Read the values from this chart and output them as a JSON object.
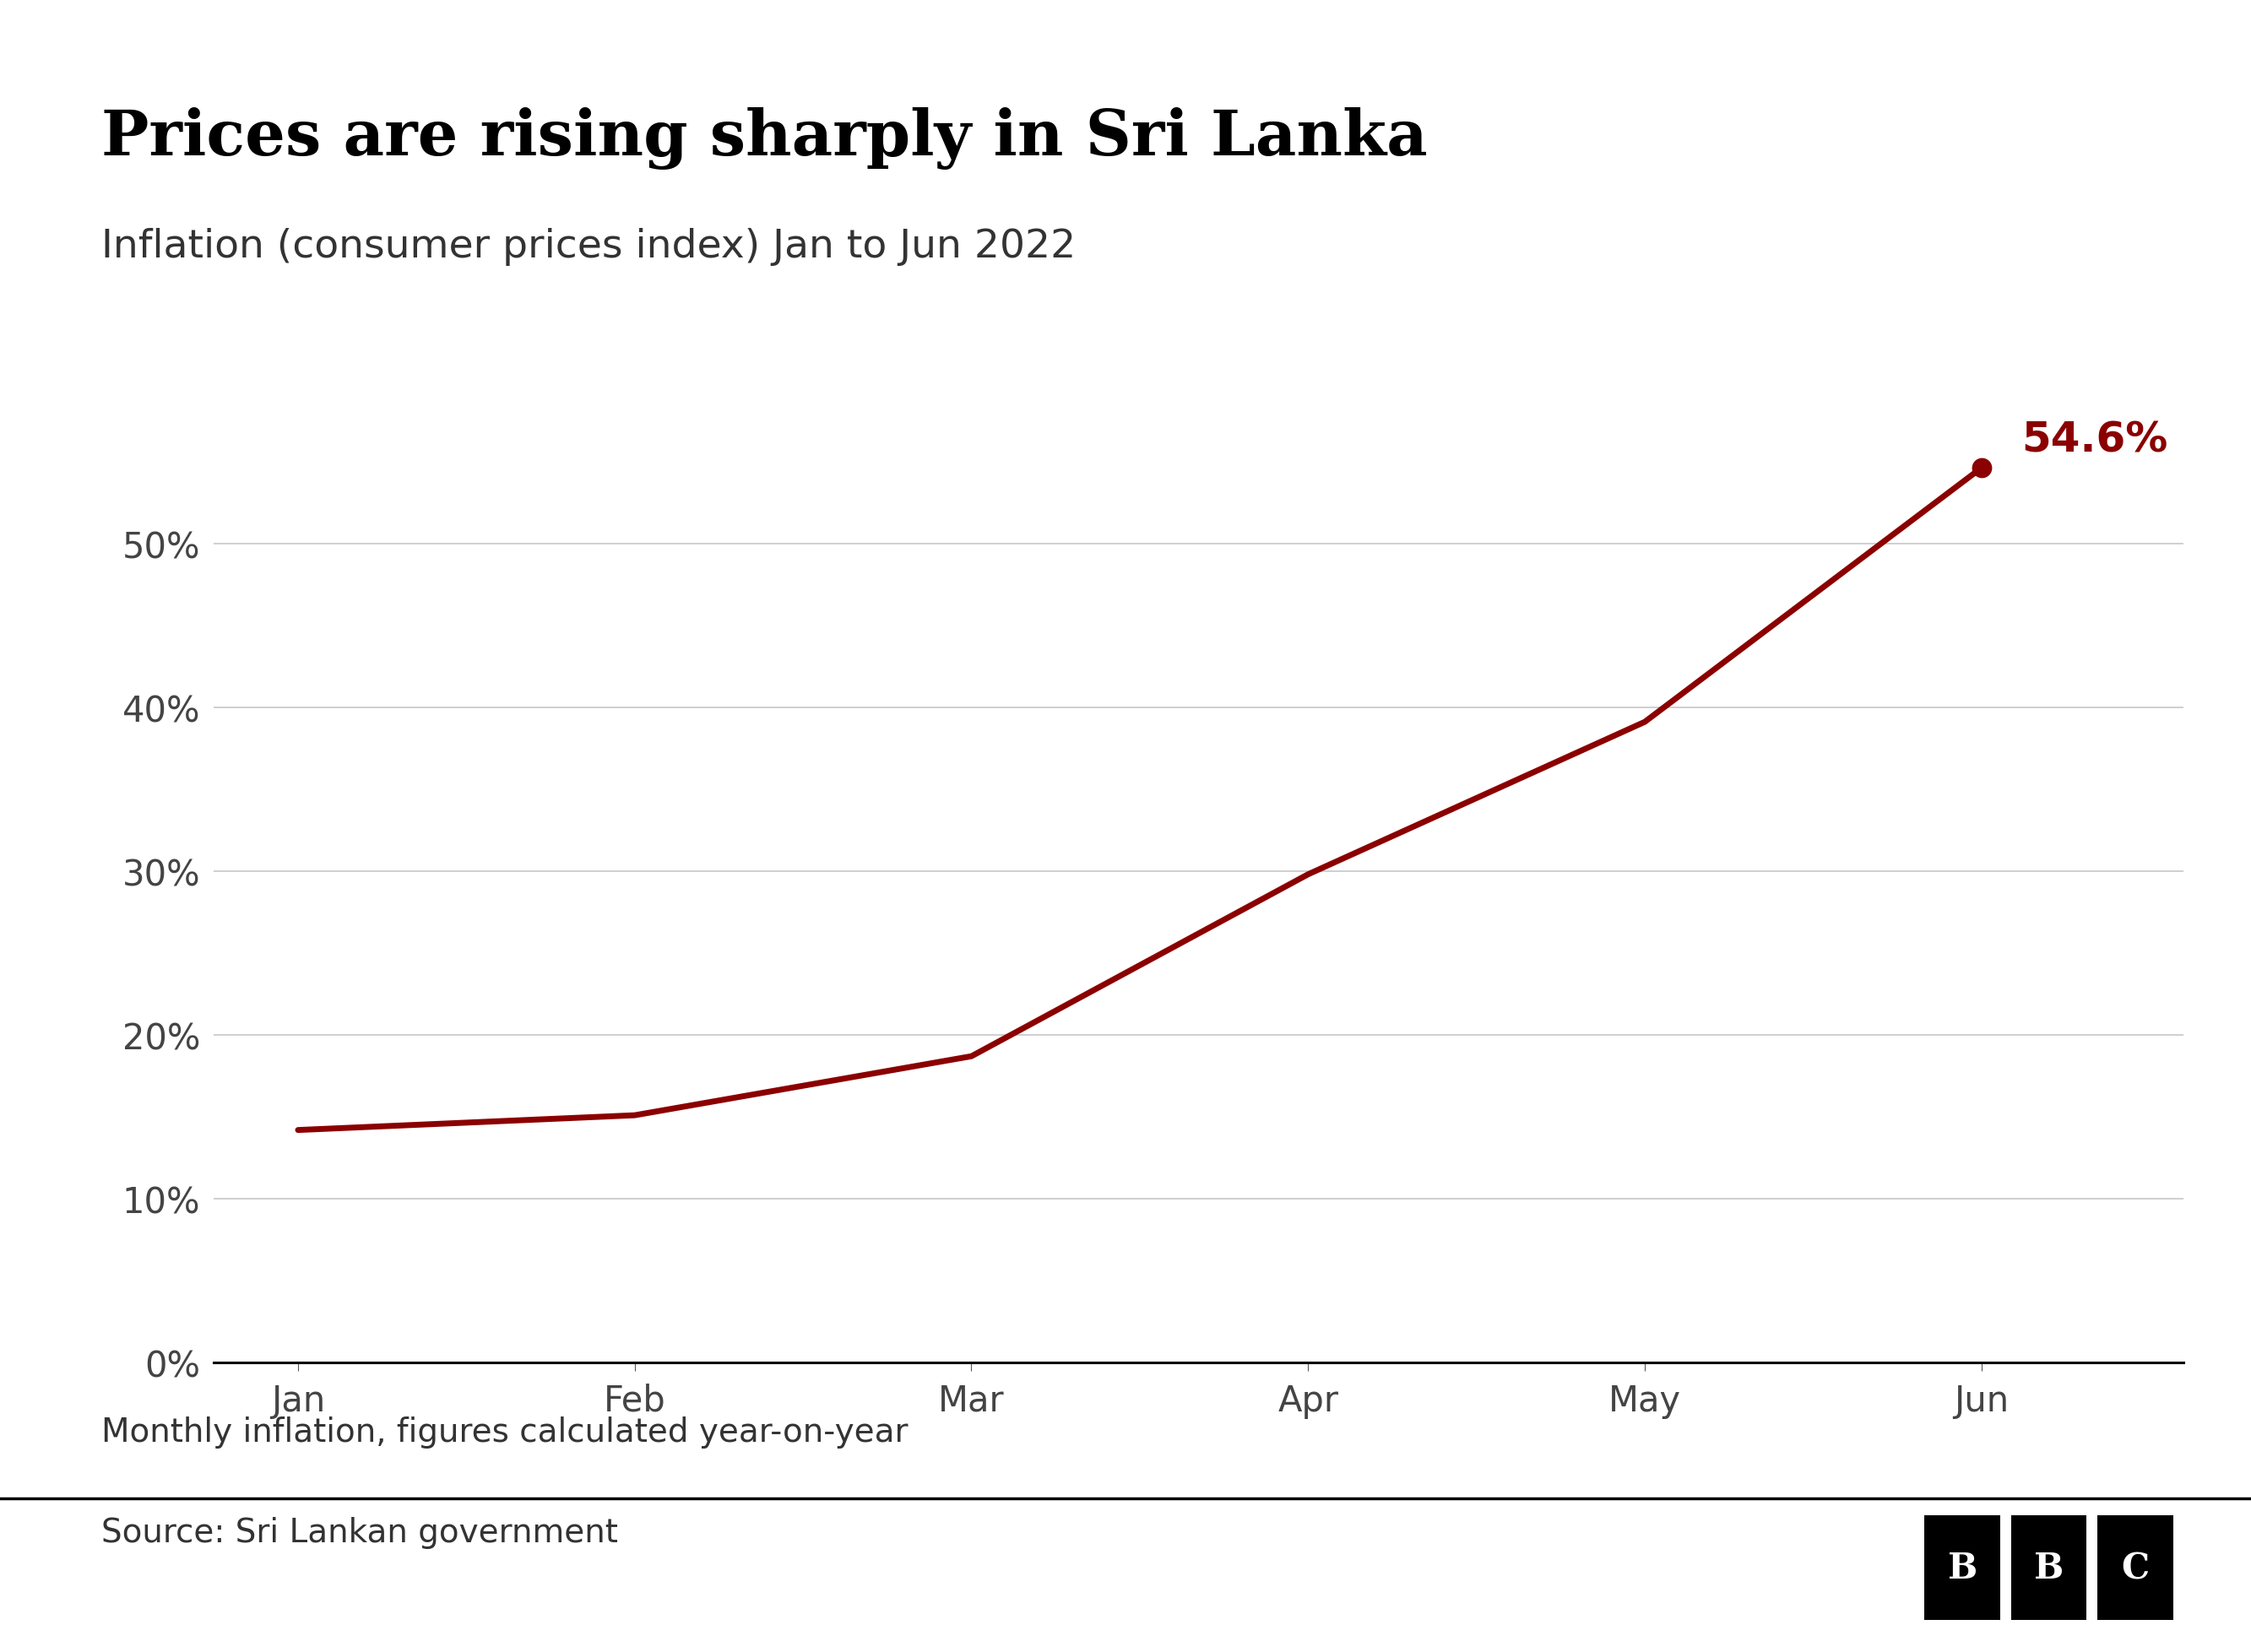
{
  "title": "Prices are rising sharply in Sri Lanka",
  "subtitle": "Inflation (consumer prices index) Jan to Jun 2022",
  "months": [
    "Jan",
    "Feb",
    "Mar",
    "Apr",
    "May",
    "Jun"
  ],
  "values": [
    14.2,
    15.1,
    18.7,
    29.8,
    39.1,
    54.6
  ],
  "line_color": "#8B0000",
  "dot_color": "#8B0000",
  "annotation_text": "54.6%",
  "annotation_color": "#8B0000",
  "ylabel_ticks": [
    0,
    10,
    20,
    30,
    40,
    50
  ],
  "ytop": 60,
  "grid_color": "#cccccc",
  "background_color": "#ffffff",
  "title_fontsize": 54,
  "subtitle_fontsize": 34,
  "tick_fontsize": 30,
  "annotation_fontsize": 36,
  "footer_note": "Monthly inflation, figures calculated year-on-year",
  "source_text": "Source: Sri Lankan government",
  "footer_fontsize": 28
}
